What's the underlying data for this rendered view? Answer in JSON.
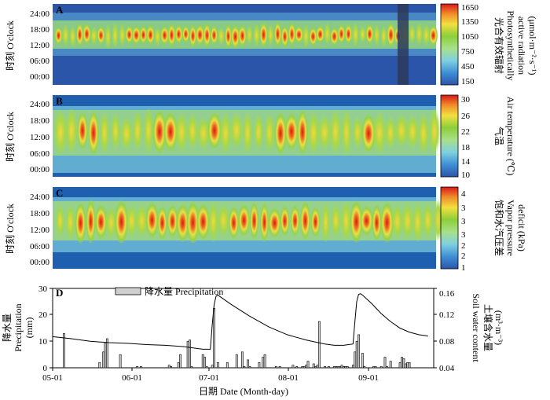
{
  "chart_data": [
    {
      "type": "heatmap",
      "panel_label": "A",
      "ylabel": "时刻 O'clock",
      "y_ticks": [
        "24:00",
        "18:00",
        "12:00",
        "06:00",
        "00:00"
      ],
      "colorbar": {
        "label_cn": "光合有效辐射",
        "label_en_lines": [
          "Photosynthetically",
          "active radiation"
        ],
        "unit": "(μmol·m⁻²·s⁻¹)",
        "ticks": [
          "1650",
          "1350",
          "1050",
          "750",
          "450",
          "150"
        ],
        "range": [
          150,
          1650
        ]
      }
    },
    {
      "type": "heatmap",
      "panel_label": "B",
      "ylabel": "时刻 O'clock",
      "y_ticks": [
        "24:00",
        "18:00",
        "12:00",
        "06:00",
        "00:00"
      ],
      "colorbar": {
        "label_cn": "气温",
        "label_en_lines": [
          "Air temperature (℃)"
        ],
        "unit": "",
        "ticks": [
          "30",
          "26",
          "22",
          "18",
          "14",
          "10"
        ],
        "range": [
          10,
          30
        ]
      }
    },
    {
      "type": "heatmap",
      "panel_label": "C",
      "ylabel": "时刻 O'clock",
      "y_ticks": [
        "24:00",
        "18:00",
        "12:00",
        "06:00",
        "00:00"
      ],
      "colorbar": {
        "label_cn": "饱和水汽压差",
        "label_en_lines": [
          "Vapor pressure",
          "deficit (kPa)"
        ],
        "unit": "",
        "ticks": [
          "4",
          "3",
          "3",
          "3",
          "2",
          "2",
          "1"
        ],
        "range": [
          1,
          4
        ]
      }
    },
    {
      "type": "bar",
      "panel_label": "D",
      "legend": "降水量 Precipitation",
      "xlabel": "日期 Date (Month-day)",
      "x_ticks": [
        "05-01",
        "06-01",
        "07-01",
        "08-01",
        "09-01"
      ],
      "ylabel_left_cn": "降水量",
      "ylabel_left_en": "Precipitation",
      "ylabel_left_unit": "(mm)",
      "ylim_left": [
        0,
        30
      ],
      "y_ticks_left": [
        "0",
        "10",
        "20",
        "30"
      ],
      "ylabel_right_cn": "土壤含水量",
      "ylabel_right_en": "Soil water content",
      "ylabel_right_unit": "(m³·m⁻³)",
      "ylim_right": [
        0.04,
        0.16
      ],
      "y_ticks_right": [
        "0.04",
        "0.08",
        "0.12",
        "0.16"
      ],
      "precipitation": [
        [
          6,
          13
        ],
        [
          25,
          2
        ],
        [
          27,
          6
        ],
        [
          28,
          9.5
        ],
        [
          29,
          11
        ],
        [
          36,
          5
        ],
        [
          45,
          0.5
        ],
        [
          47,
          0.5
        ],
        [
          62,
          1
        ],
        [
          63,
          0.5
        ],
        [
          67,
          2
        ],
        [
          68,
          5
        ],
        [
          72,
          10
        ],
        [
          73,
          10.5
        ],
        [
          74,
          0.5
        ],
        [
          80,
          5
        ],
        [
          81,
          4
        ],
        [
          82,
          0.5
        ],
        [
          85,
          1
        ],
        [
          86,
          22.5
        ],
        [
          88,
          2
        ],
        [
          93,
          2
        ],
        [
          98,
          5
        ],
        [
          101,
          6
        ],
        [
          102,
          0.5
        ],
        [
          104,
          3
        ],
        [
          105,
          0.5
        ],
        [
          110,
          2
        ],
        [
          112,
          4
        ],
        [
          113,
          5
        ],
        [
          119,
          0.5
        ],
        [
          121,
          0.5
        ],
        [
          128,
          1
        ],
        [
          130,
          0.5
        ],
        [
          133,
          0.5
        ],
        [
          134,
          0.5
        ],
        [
          135,
          1
        ],
        [
          136,
          2.5
        ],
        [
          139,
          1.5
        ],
        [
          140,
          0.5
        ],
        [
          141,
          1
        ],
        [
          142,
          17.5
        ],
        [
          145,
          0.5
        ],
        [
          147,
          0.5
        ],
        [
          150,
          0.5
        ],
        [
          151,
          0.5
        ],
        [
          152,
          0.5
        ],
        [
          153,
          0.5
        ],
        [
          154,
          1
        ],
        [
          155,
          0.5
        ],
        [
          156,
          0.5
        ],
        [
          157,
          0.5
        ],
        [
          160,
          1
        ],
        [
          161,
          6
        ],
        [
          162,
          10
        ],
        [
          163,
          12.5
        ],
        [
          165,
          5.5
        ],
        [
          166,
          0.5
        ],
        [
          171,
          0.5
        ],
        [
          172,
          0.5
        ],
        [
          175,
          0.5
        ],
        [
          177,
          4
        ],
        [
          178,
          0.5
        ],
        [
          180,
          2.5
        ],
        [
          185,
          2
        ],
        [
          186,
          4
        ],
        [
          187,
          3.5
        ],
        [
          188,
          1.5
        ],
        [
          189,
          2
        ],
        [
          190,
          2
        ]
      ],
      "soil_water": [
        [
          0,
          0.087
        ],
        [
          10,
          0.084
        ],
        [
          20,
          0.08
        ],
        [
          30,
          0.078
        ],
        [
          40,
          0.077
        ],
        [
          50,
          0.075
        ],
        [
          60,
          0.074
        ],
        [
          70,
          0.072
        ],
        [
          80,
          0.068
        ],
        [
          84,
          0.068
        ],
        [
          85,
          0.105
        ],
        [
          86,
          0.135
        ],
        [
          87,
          0.148
        ],
        [
          88,
          0.15
        ],
        [
          90,
          0.146
        ],
        [
          95,
          0.136
        ],
        [
          100,
          0.127
        ],
        [
          105,
          0.118
        ],
        [
          110,
          0.11
        ],
        [
          115,
          0.102
        ],
        [
          120,
          0.096
        ],
        [
          125,
          0.09
        ],
        [
          130,
          0.086
        ],
        [
          135,
          0.082
        ],
        [
          140,
          0.079
        ],
        [
          145,
          0.076
        ],
        [
          150,
          0.074
        ],
        [
          155,
          0.074
        ],
        [
          160,
          0.076
        ],
        [
          161,
          0.11
        ],
        [
          162,
          0.14
        ],
        [
          163,
          0.151
        ],
        [
          164,
          0.152
        ],
        [
          165,
          0.15
        ],
        [
          170,
          0.137
        ],
        [
          175,
          0.122
        ],
        [
          180,
          0.11
        ],
        [
          185,
          0.1
        ],
        [
          190,
          0.094
        ],
        [
          195,
          0.09
        ],
        [
          200,
          0.088
        ]
      ]
    }
  ]
}
